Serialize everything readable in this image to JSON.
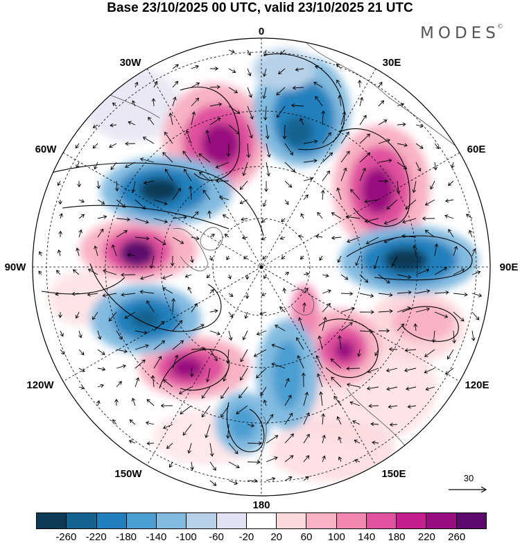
{
  "title": "Base 23/10/2025 00 UTC, valid 23/10/2025 21 UTC",
  "brand": {
    "name": "MODES",
    "mark": "©"
  },
  "map": {
    "projection": "north polar stereographic",
    "longitude_labels": [
      "0",
      "30E",
      "60E",
      "90E",
      "120E",
      "150E",
      "180",
      "150W",
      "120W",
      "90W",
      "60W",
      "30W"
    ],
    "reference_vector": {
      "value": "30"
    }
  },
  "colorbar": {
    "colors": [
      "#0d3a57",
      "#14628f",
      "#2281bd",
      "#4b9ed2",
      "#83bbe0",
      "#b7d1e8",
      "#e2e3f2",
      "#ffffff",
      "#fcd9dd",
      "#f8b2c4",
      "#f186b1",
      "#e0519e",
      "#c41e8f",
      "#98107f",
      "#5c0a6e"
    ],
    "ticks": [
      "-260",
      "-220",
      "-180",
      "-140",
      "-100",
      "-60",
      "-20",
      "20",
      "60",
      "100",
      "140",
      "180",
      "220",
      "260"
    ]
  }
}
